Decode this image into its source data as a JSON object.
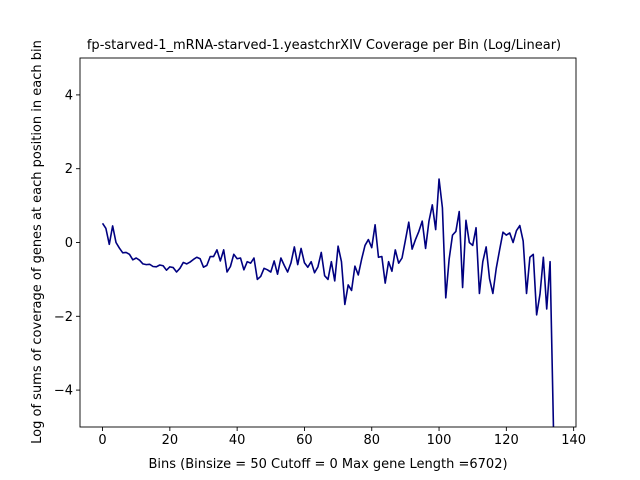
{
  "chart_data": {
    "type": "line",
    "title": "fp-starved-1_mRNA-starved-1.yeastchrXIV Coverage per Bin (Log/Linear)",
    "xlabel": "Bins  (Binsize = 50 Cutoff = 0 Max gene Length =6702)",
    "ylabel": "Log of sums of coverage of genes at each position in each bin",
    "xlim": [
      -6.7,
      140.7
    ],
    "ylim": [
      -5,
      5
    ],
    "xticks": [
      0,
      20,
      40,
      60,
      80,
      100,
      120,
      140
    ],
    "yticks": [
      -4,
      -2,
      0,
      2,
      4
    ],
    "xtick_labels": [
      "0",
      "20",
      "40",
      "60",
      "80",
      "100",
      "120",
      "140"
    ],
    "ytick_labels": [
      "−4",
      "−2",
      "0",
      "2",
      "4"
    ],
    "grid": false,
    "color": "#000080",
    "series": [
      {
        "values": [
          0.52,
          0.38,
          -0.05,
          0.45,
          0.0,
          -0.15,
          -0.28,
          -0.27,
          -0.32,
          -0.47,
          -0.42,
          -0.48,
          -0.58,
          -0.6,
          -0.59,
          -0.65,
          -0.66,
          -0.61,
          -0.63,
          -0.75,
          -0.66,
          -0.68,
          -0.8,
          -0.7,
          -0.54,
          -0.58,
          -0.53,
          -0.46,
          -0.4,
          -0.44,
          -0.67,
          -0.62,
          -0.38,
          -0.38,
          -0.2,
          -0.5,
          -0.2,
          -0.8,
          -0.65,
          -0.32,
          -0.44,
          -0.42,
          -0.74,
          -0.52,
          -0.56,
          -0.42,
          -1.0,
          -0.92,
          -0.7,
          -0.74,
          -0.8,
          -0.5,
          -0.86,
          -0.42,
          -0.62,
          -0.8,
          -0.55,
          -0.12,
          -0.6,
          -0.16,
          -0.55,
          -0.67,
          -0.52,
          -0.82,
          -0.66,
          -0.27,
          -0.9,
          -1.0,
          -0.52,
          -1.04,
          -0.1,
          -0.52,
          -1.68,
          -1.15,
          -1.3,
          -0.64,
          -0.88,
          -0.45,
          -0.08,
          0.08,
          -0.14,
          0.48,
          -0.4,
          -0.38,
          -1.1,
          -0.52,
          -0.78,
          -0.2,
          -0.56,
          -0.42,
          0.06,
          0.55,
          -0.18,
          0.08,
          0.3,
          0.58,
          -0.16,
          0.58,
          1.02,
          0.35,
          1.72,
          0.94,
          -1.5,
          -0.45,
          0.2,
          0.3,
          0.84,
          -1.22,
          0.6,
          0.0,
          -0.08,
          0.4,
          -1.38,
          -0.52,
          -0.12,
          -0.98,
          -1.38,
          -0.7,
          -0.2,
          0.28,
          0.2,
          0.26,
          0.0,
          0.32,
          0.46,
          0.04,
          -1.38,
          -0.4,
          -0.32,
          -1.96,
          -1.4,
          -0.4,
          -1.8,
          -0.52,
          -5.0
        ]
      }
    ]
  }
}
